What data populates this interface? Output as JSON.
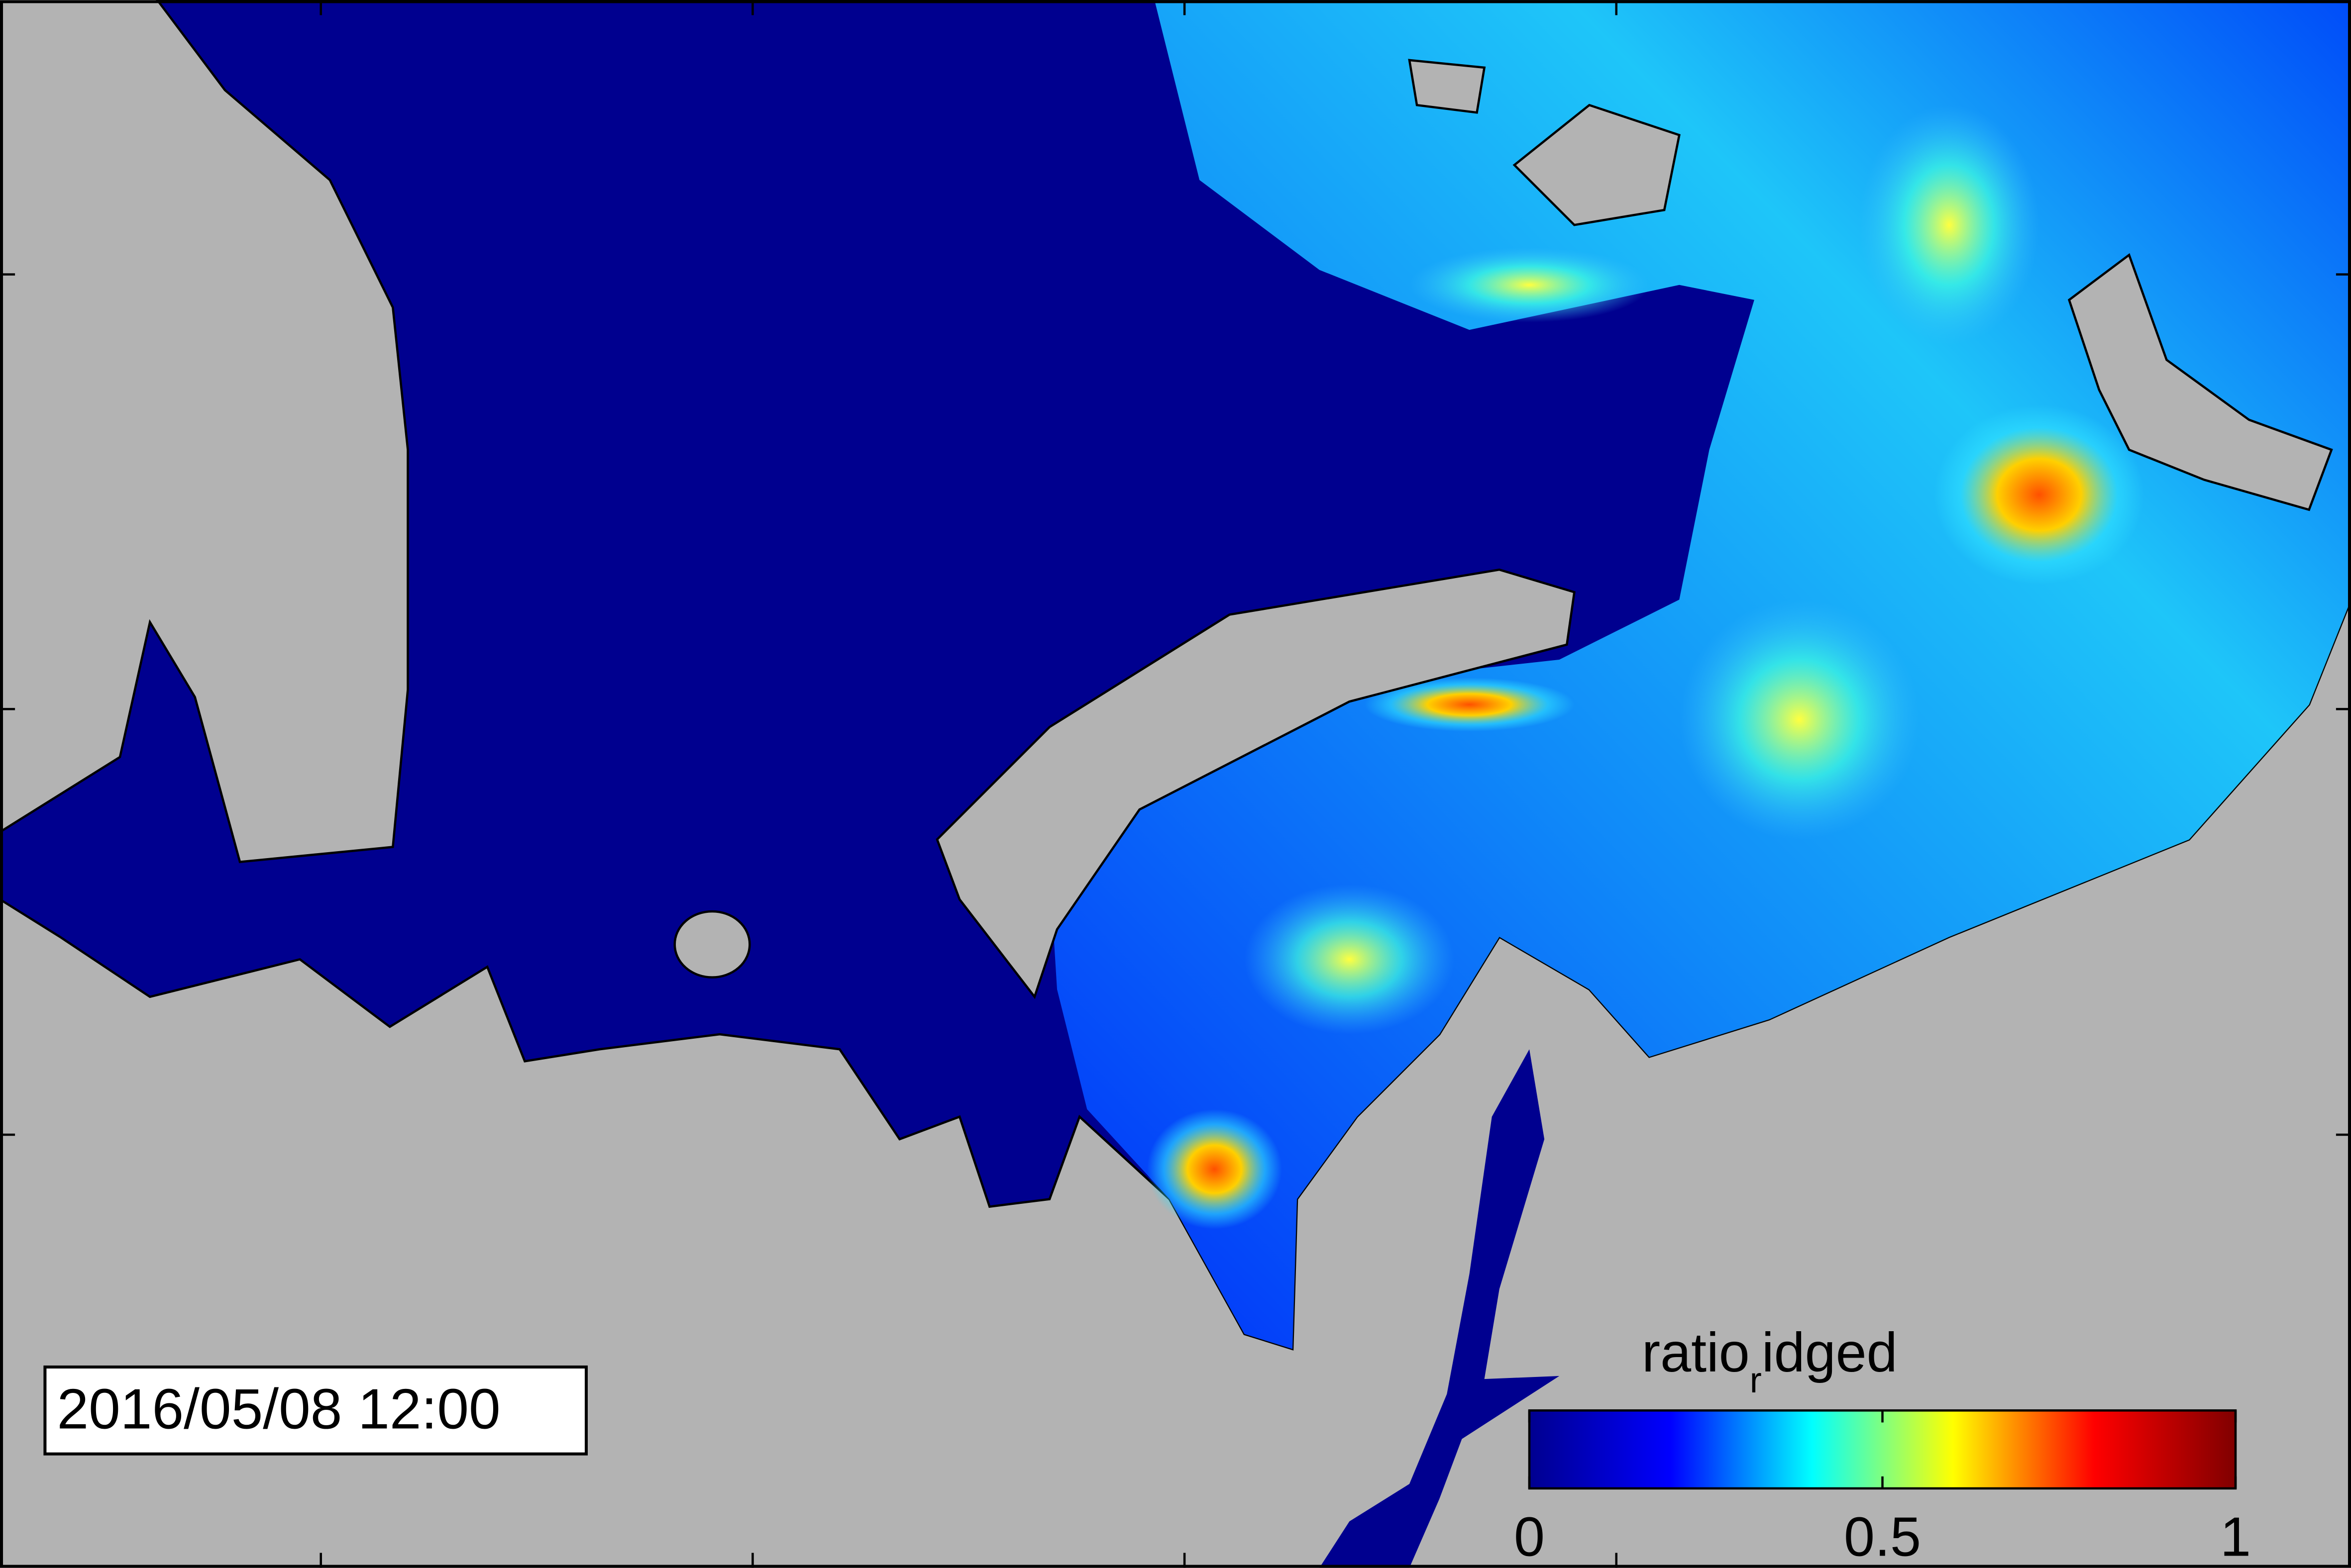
{
  "timestamp": "2016/05/08 12:00",
  "colorbar": {
    "label": {
      "main": "ratio",
      "subscript": "r",
      "rest": "idged"
    },
    "range": [
      0,
      1
    ],
    "ticks": [
      0,
      0.5,
      1
    ],
    "colormap": [
      "#00008f",
      "#0000ff",
      "#00ffff",
      "#ffff00",
      "#ff0000",
      "#800000"
    ]
  }
}
